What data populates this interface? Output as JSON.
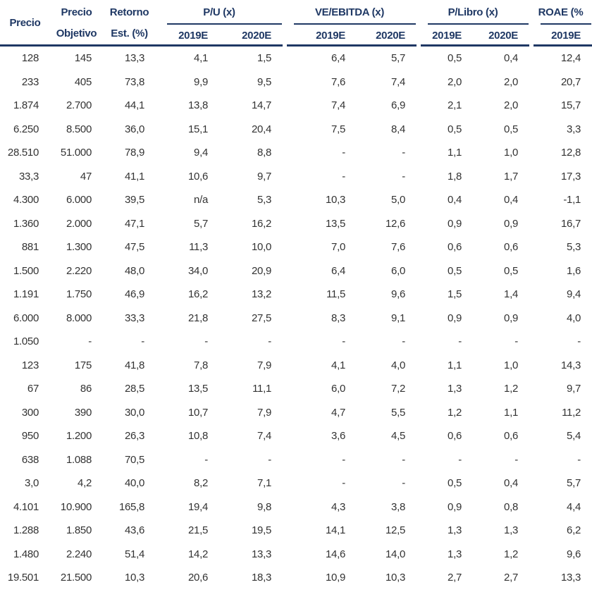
{
  "colors": {
    "header_text": "#1F3864",
    "rule": "#1F3864",
    "data_text": "#333333",
    "background": "#FFFFFF"
  },
  "table": {
    "header": {
      "precio": "Precio",
      "precio_objetivo": {
        "line1": "Precio",
        "line2": "Objetivo"
      },
      "retorno": {
        "line1": "Retorno",
        "line2": "Est. (%)"
      },
      "groups": [
        {
          "label": "P/U (x)",
          "sub": [
            "2019E",
            "2020E"
          ]
        },
        {
          "label": "VE/EBITDA (x)",
          "sub": [
            "2019E",
            "2020E"
          ]
        },
        {
          "label": "P/Libro (x)",
          "sub": [
            "2019E",
            "2020E"
          ]
        },
        {
          "label": "ROAE (%",
          "sub": [
            "2019E"
          ]
        }
      ]
    },
    "rows": [
      [
        "128",
        "145",
        "13,3",
        "4,1",
        "1,5",
        "6,4",
        "5,7",
        "0,5",
        "0,4",
        "12,4"
      ],
      [
        "233",
        "405",
        "73,8",
        "9,9",
        "9,5",
        "7,6",
        "7,4",
        "2,0",
        "2,0",
        "20,7"
      ],
      [
        "1.874",
        "2.700",
        "44,1",
        "13,8",
        "14,7",
        "7,4",
        "6,9",
        "2,1",
        "2,0",
        "15,7"
      ],
      [
        "6.250",
        "8.500",
        "36,0",
        "15,1",
        "20,4",
        "7,5",
        "8,4",
        "0,5",
        "0,5",
        "3,3"
      ],
      [
        "28.510",
        "51.000",
        "78,9",
        "9,4",
        "8,8",
        "-",
        "-",
        "1,1",
        "1,0",
        "12,8"
      ],
      [
        "33,3",
        "47",
        "41,1",
        "10,6",
        "9,7",
        "-",
        "-",
        "1,8",
        "1,7",
        "17,3"
      ],
      [
        "4.300",
        "6.000",
        "39,5",
        "n/a",
        "5,3",
        "10,3",
        "5,0",
        "0,4",
        "0,4",
        "-1,1"
      ],
      [
        "1.360",
        "2.000",
        "47,1",
        "5,7",
        "16,2",
        "13,5",
        "12,6",
        "0,9",
        "0,9",
        "16,7"
      ],
      [
        "881",
        "1.300",
        "47,5",
        "11,3",
        "10,0",
        "7,0",
        "7,6",
        "0,6",
        "0,6",
        "5,3"
      ],
      [
        "1.500",
        "2.220",
        "48,0",
        "34,0",
        "20,9",
        "6,4",
        "6,0",
        "0,5",
        "0,5",
        "1,6"
      ],
      [
        "1.191",
        "1.750",
        "46,9",
        "16,2",
        "13,2",
        "11,5",
        "9,6",
        "1,5",
        "1,4",
        "9,4"
      ],
      [
        "6.000",
        "8.000",
        "33,3",
        "21,8",
        "27,5",
        "8,3",
        "9,1",
        "0,9",
        "0,9",
        "4,0"
      ],
      [
        "1.050",
        "-",
        "-",
        "-",
        "-",
        "-",
        "-",
        "-",
        "-",
        "-"
      ],
      [
        "123",
        "175",
        "41,8",
        "7,8",
        "7,9",
        "4,1",
        "4,0",
        "1,1",
        "1,0",
        "14,3"
      ],
      [
        "67",
        "86",
        "28,5",
        "13,5",
        "11,1",
        "6,0",
        "7,2",
        "1,3",
        "1,2",
        "9,7"
      ],
      [
        "300",
        "390",
        "30,0",
        "10,7",
        "7,9",
        "4,7",
        "5,5",
        "1,2",
        "1,1",
        "11,2"
      ],
      [
        "950",
        "1.200",
        "26,3",
        "10,8",
        "7,4",
        "3,6",
        "4,5",
        "0,6",
        "0,6",
        "5,4"
      ],
      [
        "638",
        "1.088",
        "70,5",
        "-",
        "-",
        "-",
        "-",
        "-",
        "-",
        "-"
      ],
      [
        "3,0",
        "4,2",
        "40,0",
        "8,2",
        "7,1",
        "-",
        "-",
        "0,5",
        "0,4",
        "5,7"
      ],
      [
        "4.101",
        "10.900",
        "165,8",
        "19,4",
        "9,8",
        "4,3",
        "3,8",
        "0,9",
        "0,8",
        "4,4"
      ],
      [
        "1.288",
        "1.850",
        "43,6",
        "21,5",
        "19,5",
        "14,1",
        "12,5",
        "1,3",
        "1,3",
        "6,2"
      ],
      [
        "1.480",
        "2.240",
        "51,4",
        "14,2",
        "13,3",
        "14,6",
        "14,0",
        "1,3",
        "1,2",
        "9,6"
      ],
      [
        "19.501",
        "21.500",
        "10,3",
        "20,6",
        "18,3",
        "10,9",
        "10,3",
        "2,7",
        "2,7",
        "13,3"
      ]
    ]
  }
}
